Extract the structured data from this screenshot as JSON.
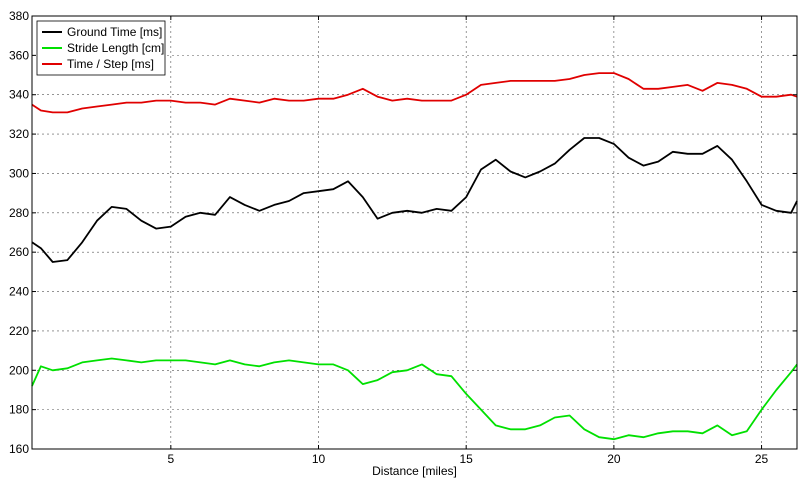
{
  "chart_data": {
    "type": "line",
    "title": "",
    "xlabel": "Distance [miles]",
    "ylabel": "",
    "xlim": [
      0.3,
      26.2
    ],
    "ylim": [
      160,
      380
    ],
    "xticks": [
      5,
      10,
      15,
      20,
      25
    ],
    "yticks": [
      160,
      180,
      200,
      220,
      240,
      260,
      280,
      300,
      320,
      340,
      360,
      380
    ],
    "grid": true,
    "legend_position": "top-left",
    "series": [
      {
        "name": "Ground Time [ms]",
        "color": "#000000",
        "x": [
          0.3,
          0.6,
          1.0,
          1.5,
          2.0,
          2.5,
          3.0,
          3.5,
          4.0,
          4.5,
          5.0,
          5.5,
          6.0,
          6.5,
          7.0,
          7.5,
          8.0,
          8.5,
          9.0,
          9.5,
          10.0,
          10.5,
          11.0,
          11.5,
          12.0,
          12.5,
          13.0,
          13.5,
          14.0,
          14.5,
          15.0,
          15.5,
          16.0,
          16.5,
          17.0,
          17.5,
          18.0,
          18.5,
          19.0,
          19.5,
          20.0,
          20.5,
          21.0,
          21.5,
          22.0,
          22.5,
          23.0,
          23.5,
          24.0,
          24.5,
          25.0,
          25.5,
          26.0,
          26.2
        ],
        "y": [
          265,
          262,
          255,
          256,
          265,
          276,
          283,
          282,
          276,
          272,
          273,
          278,
          280,
          279,
          288,
          284,
          281,
          284,
          286,
          290,
          291,
          292,
          296,
          288,
          277,
          280,
          281,
          280,
          282,
          281,
          288,
          302,
          307,
          301,
          298,
          301,
          305,
          312,
          318,
          318,
          315,
          308,
          304,
          306,
          311,
          310,
          310,
          314,
          307,
          296,
          284,
          281,
          280,
          286
        ]
      },
      {
        "name": "Stride Length  [cm]",
        "color": "#00e000",
        "x": [
          0.3,
          0.6,
          1.0,
          1.5,
          2.0,
          2.5,
          3.0,
          3.5,
          4.0,
          4.5,
          5.0,
          5.5,
          6.0,
          6.5,
          7.0,
          7.5,
          8.0,
          8.5,
          9.0,
          9.5,
          10.0,
          10.5,
          11.0,
          11.5,
          12.0,
          12.5,
          13.0,
          13.5,
          14.0,
          14.5,
          15.0,
          15.5,
          16.0,
          16.5,
          17.0,
          17.5,
          18.0,
          18.5,
          19.0,
          19.5,
          20.0,
          20.5,
          21.0,
          21.5,
          22.0,
          22.5,
          23.0,
          23.5,
          24.0,
          24.5,
          25.0,
          25.5,
          26.0,
          26.2
        ],
        "y": [
          192,
          202,
          200,
          201,
          204,
          205,
          206,
          205,
          204,
          205,
          205,
          205,
          204,
          203,
          205,
          203,
          202,
          204,
          205,
          204,
          203,
          203,
          200,
          193,
          195,
          199,
          200,
          203,
          198,
          197,
          188,
          180,
          172,
          170,
          170,
          172,
          176,
          177,
          170,
          166,
          165,
          167,
          166,
          168,
          169,
          169,
          168,
          172,
          167,
          169,
          180,
          190,
          199,
          203
        ]
      },
      {
        "name": "Time / Step [ms]",
        "color": "#e00000",
        "x": [
          0.3,
          0.6,
          1.0,
          1.5,
          2.0,
          2.5,
          3.0,
          3.5,
          4.0,
          4.5,
          5.0,
          5.5,
          6.0,
          6.5,
          7.0,
          7.5,
          8.0,
          8.5,
          9.0,
          9.5,
          10.0,
          10.5,
          11.0,
          11.5,
          12.0,
          12.5,
          13.0,
          13.5,
          14.0,
          14.5,
          15.0,
          15.5,
          16.0,
          16.5,
          17.0,
          17.5,
          18.0,
          18.5,
          19.0,
          19.5,
          20.0,
          20.5,
          21.0,
          21.5,
          22.0,
          22.5,
          23.0,
          23.5,
          24.0,
          24.5,
          25.0,
          25.5,
          26.0,
          26.2
        ],
        "y": [
          335,
          332,
          331,
          331,
          333,
          334,
          335,
          336,
          336,
          337,
          337,
          336,
          336,
          335,
          338,
          337,
          336,
          338,
          337,
          337,
          338,
          338,
          340,
          343,
          339,
          337,
          338,
          337,
          337,
          337,
          340,
          345,
          346,
          347,
          347,
          347,
          347,
          348,
          350,
          351,
          351,
          348,
          343,
          343,
          344,
          345,
          342,
          346,
          345,
          343,
          339,
          339,
          340,
          339
        ]
      }
    ]
  }
}
